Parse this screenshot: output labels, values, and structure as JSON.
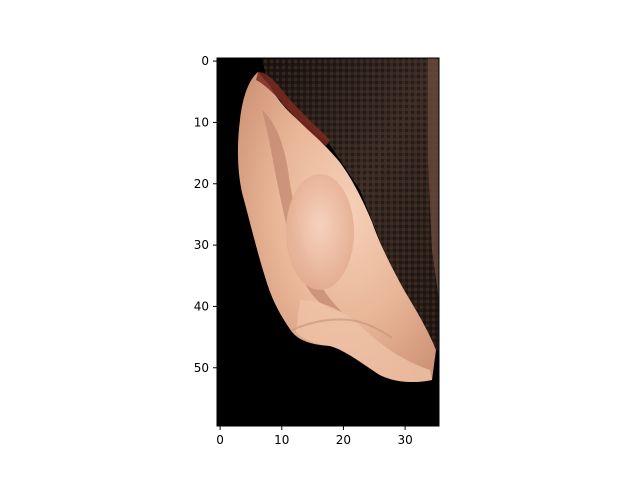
{
  "chart_data": {
    "type": "image",
    "image_extent": {
      "x": [
        0,
        36
      ],
      "y": [
        60,
        0
      ]
    },
    "x_ticks": [
      "0",
      "10",
      "20",
      "30"
    ],
    "y_ticks": [
      "0",
      "10",
      "20",
      "30",
      "40",
      "50"
    ],
    "x_tick_values": [
      0,
      10,
      20,
      30
    ],
    "y_tick_values": [
      0,
      10,
      20,
      30,
      40,
      50
    ],
    "grid": false,
    "colors": {
      "background": "#000000",
      "hair": "#2a1e18",
      "hair_highlight": "#4b3a31",
      "skin": "#eab89c",
      "skin_shadow": "#d69c7e",
      "skin_bright": "#f3c8ad",
      "inner_fold": "#c08a72",
      "rim_dark": "#7b2a1e",
      "axis": "#000000"
    }
  }
}
